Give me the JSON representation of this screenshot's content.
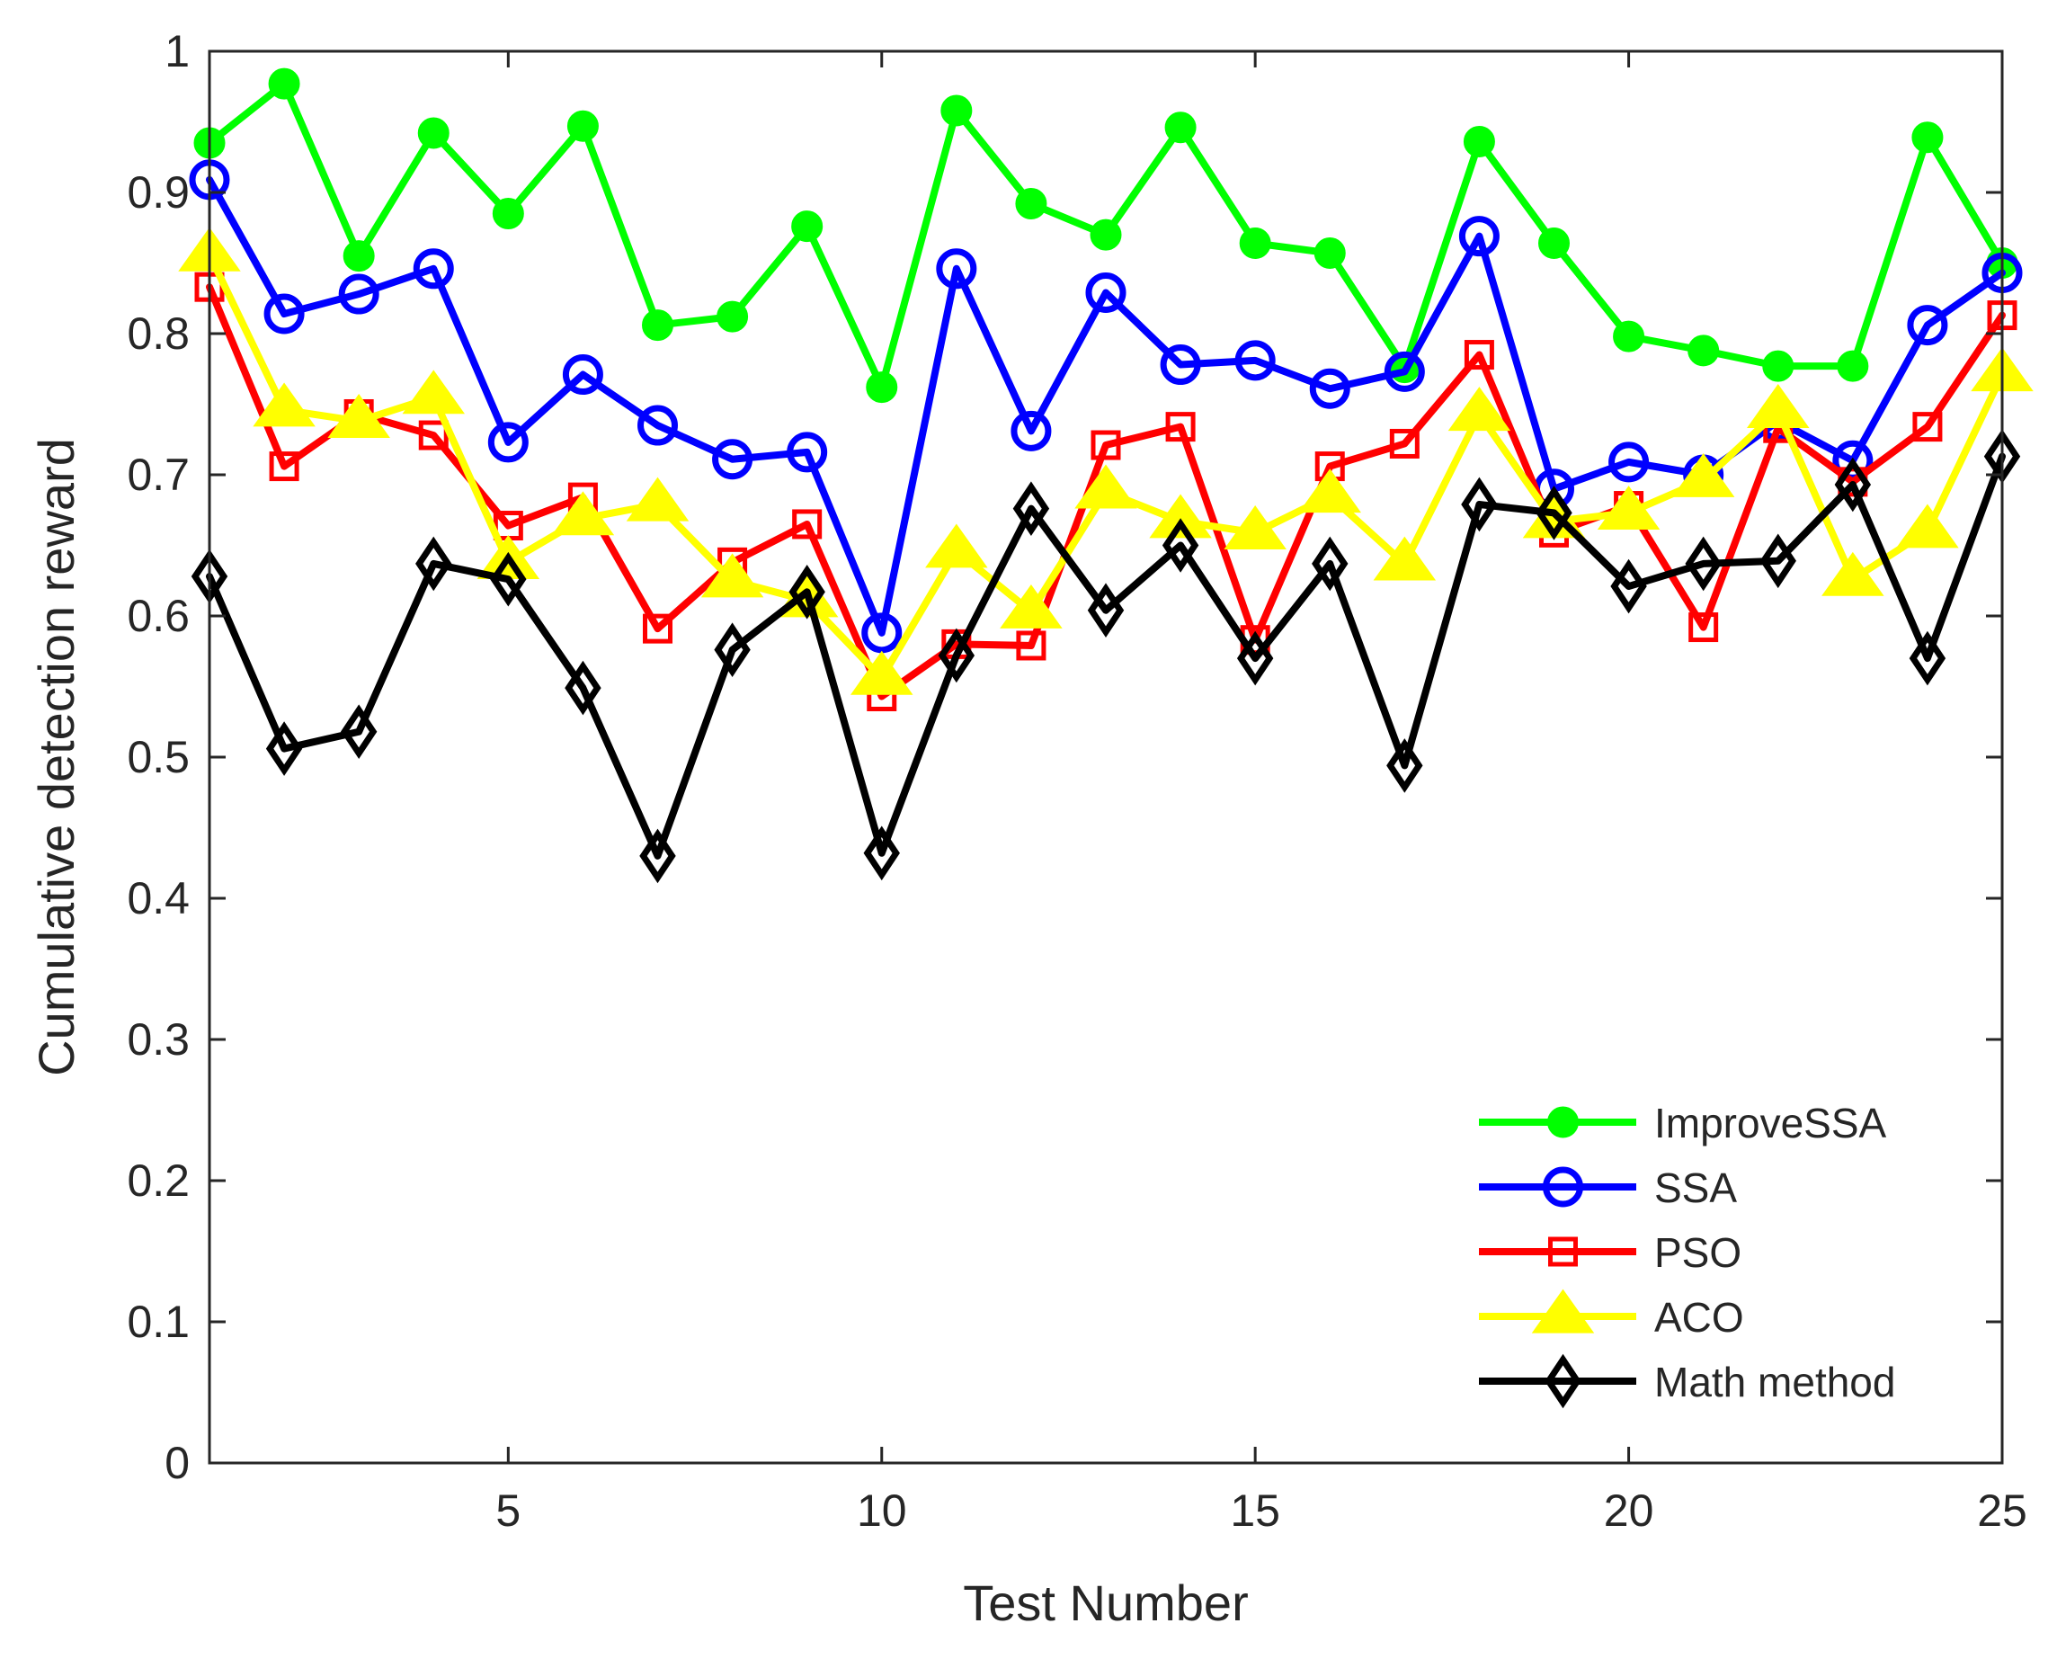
{
  "chart_data": {
    "type": "line",
    "title": "",
    "xlabel": "Test Number",
    "ylabel": "Cumulative detection reward",
    "xlim": [
      1,
      25
    ],
    "ylim": [
      0,
      1
    ],
    "xticks": [
      5,
      10,
      15,
      20,
      25
    ],
    "xtick_labels": [
      "5",
      "10",
      "15",
      "20",
      "25"
    ],
    "yticks": [
      0,
      0.1,
      0.2,
      0.3,
      0.4,
      0.5,
      0.6,
      0.7,
      0.8,
      0.9,
      1
    ],
    "ytick_labels": [
      "0",
      "0.1",
      "0.2",
      "0.3",
      "0.4",
      "0.5",
      "0.6",
      "0.7",
      "0.8",
      "0.9",
      "1"
    ],
    "grid": false,
    "legend_position": "bottom-right",
    "x": [
      1,
      2,
      3,
      4,
      5,
      6,
      7,
      8,
      9,
      10,
      11,
      12,
      13,
      14,
      15,
      16,
      17,
      18,
      19,
      20,
      21,
      22,
      23,
      24,
      25
    ],
    "series": [
      {
        "name": "ImproveSSA",
        "color": "#00ff00",
        "marker": "filled-circle",
        "values": [
          0.935,
          0.977,
          0.855,
          0.942,
          0.885,
          0.947,
          0.806,
          0.812,
          0.876,
          0.762,
          0.958,
          0.892,
          0.87,
          0.946,
          0.864,
          0.857,
          0.776,
          0.936,
          0.864,
          0.798,
          0.788,
          0.777,
          0.777,
          0.939,
          0.85
        ]
      },
      {
        "name": "SSA",
        "color": "#0000ff",
        "marker": "circle",
        "values": [
          0.909,
          0.814,
          0.828,
          0.846,
          0.723,
          0.771,
          0.735,
          0.711,
          0.716,
          0.588,
          0.846,
          0.731,
          0.829,
          0.778,
          0.781,
          0.761,
          0.773,
          0.869,
          0.69,
          0.709,
          0.7,
          0.738,
          0.71,
          0.806,
          0.843
        ]
      },
      {
        "name": "PSO",
        "color": "#ff0000",
        "marker": "square",
        "values": [
          0.833,
          0.706,
          0.743,
          0.728,
          0.664,
          0.684,
          0.591,
          0.638,
          0.665,
          0.543,
          0.58,
          0.579,
          0.721,
          0.734,
          0.583,
          0.706,
          0.722,
          0.785,
          0.659,
          0.678,
          0.592,
          0.733,
          0.695,
          0.734,
          0.813
        ]
      },
      {
        "name": "ACO",
        "color": "#ffff00",
        "marker": "triangle",
        "values": [
          0.856,
          0.746,
          0.738,
          0.755,
          0.638,
          0.669,
          0.679,
          0.625,
          0.611,
          0.556,
          0.646,
          0.603,
          0.688,
          0.667,
          0.659,
          0.685,
          0.637,
          0.743,
          0.667,
          0.673,
          0.696,
          0.745,
          0.626,
          0.66,
          0.771
        ]
      },
      {
        "name": "Math method",
        "color": "#000000",
        "marker": "diamond",
        "values": [
          0.628,
          0.506,
          0.518,
          0.637,
          0.626,
          0.549,
          0.43,
          0.576,
          0.617,
          0.432,
          0.572,
          0.676,
          0.604,
          0.65,
          0.57,
          0.637,
          0.494,
          0.679,
          0.673,
          0.621,
          0.637,
          0.639,
          0.693,
          0.57,
          0.713
        ]
      }
    ]
  }
}
